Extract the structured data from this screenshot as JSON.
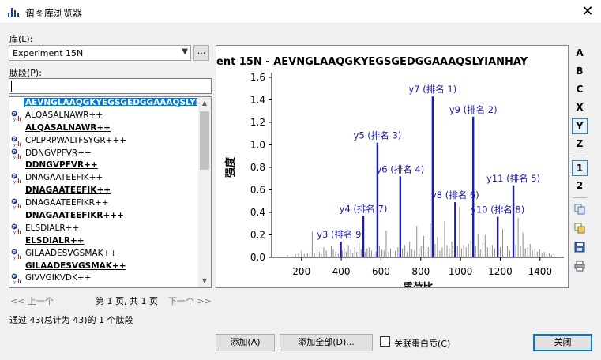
{
  "window": {
    "title": "谱图库浏览器",
    "close_glyph": "✕"
  },
  "library": {
    "label": "库(L):",
    "selected": "Experiment 15N",
    "browse_label": "..."
  },
  "peptide_filter": {
    "label": "肽段(P):",
    "value": ""
  },
  "peptides": [
    {
      "text": "AEVNGLAAQGKYEGSGEDGGAAAQSLYIANHAY",
      "bold": true,
      "icon": false,
      "selected": true
    },
    {
      "text": "ALQASALNAWR++",
      "bold": false,
      "icon": true
    },
    {
      "text": "ALQASALNAWR++",
      "bold": true,
      "icon": false
    },
    {
      "text": "CPLPRPWALTFSYGR+++",
      "bold": false,
      "icon": true
    },
    {
      "text": "DDNGVPFVR++",
      "bold": false,
      "icon": true
    },
    {
      "text": "DDNGVPFVR++",
      "bold": true,
      "icon": false
    },
    {
      "text": "DNAGAATEEFIK++",
      "bold": false,
      "icon": true
    },
    {
      "text": "DNAGAATEEFIK++",
      "bold": true,
      "icon": false
    },
    {
      "text": "DNAGAATEEFIKR++",
      "bold": false,
      "icon": true
    },
    {
      "text": "DNAGAATEEFIKR+++",
      "bold": true,
      "icon": false
    },
    {
      "text": "ELSDIALR++",
      "bold": false,
      "icon": true
    },
    {
      "text": "ELSDIALR++",
      "bold": true,
      "icon": false
    },
    {
      "text": "GILAADESVGSMAK++",
      "bold": false,
      "icon": true
    },
    {
      "text": "GILAADESVGSMAK++",
      "bold": true,
      "icon": false
    },
    {
      "text": "GIVVGIKVDK++",
      "bold": false,
      "icon": true
    }
  ],
  "pager": {
    "prev": "<< 上一个",
    "page_info": "第 1 页, 共 1 页",
    "next": "下一个 >>"
  },
  "status": "通过 43(总计为 43)的 1 个肽段",
  "toolbar": {
    "ion_types": [
      {
        "label": "A",
        "active": false
      },
      {
        "label": "B",
        "active": false
      },
      {
        "label": "C",
        "active": false
      },
      {
        "label": "X",
        "active": false
      },
      {
        "label": "Y",
        "active": true
      },
      {
        "label": "Z",
        "active": false
      }
    ],
    "charges": [
      {
        "label": "1",
        "active": true
      },
      {
        "label": "2",
        "active": false
      }
    ],
    "icons": [
      "copy-icon",
      "copy-data-icon",
      "save-icon",
      "print-icon"
    ]
  },
  "buttons": {
    "add": "添加(A)",
    "add_all": "添加全部(D)...",
    "close": "关闭"
  },
  "checkbox": {
    "label": "关联蛋白质(C)",
    "checked": false
  },
  "chart_data": {
    "type": "bar",
    "title": "ent 15N  -  AEVNGLAAQGKYEGSGEDGGAAAQSLYIANHAY",
    "xlabel": "质荷比",
    "ylabel": "强度",
    "xlim": [
      50,
      1520
    ],
    "ylim": [
      0,
      1.6
    ],
    "xticks": [
      200,
      400,
      600,
      800,
      1000,
      1200,
      1400
    ],
    "yticks": [
      0.0,
      0.2,
      0.4,
      0.6,
      0.8,
      1.0,
      1.2,
      1.4,
      1.6
    ],
    "matched_color": "#1a1ab3",
    "unmatched_color": "#8c8c8c",
    "matched_peaks": [
      {
        "x": 398,
        "y": 0.14,
        "label": "y3 (排名 9)"
      },
      {
        "x": 511,
        "y": 0.37,
        "label": "y4 (排名 7)"
      },
      {
        "x": 582,
        "y": 1.02,
        "label": "y5 (排名 3)"
      },
      {
        "x": 697,
        "y": 0.72,
        "label": "y6 (排名 4)"
      },
      {
        "x": 860,
        "y": 1.43,
        "label": "y7 (排名 1)"
      },
      {
        "x": 973,
        "y": 0.49,
        "label": "y8 (排名 6)"
      },
      {
        "x": 1064,
        "y": 1.25,
        "label": "y9 (排名 2)"
      },
      {
        "x": 1187,
        "y": 0.36,
        "label": "y10 (排名 8)"
      },
      {
        "x": 1266,
        "y": 0.64,
        "label": "y11 (排名 5)"
      }
    ],
    "unmatched_peaks": [
      [
        130,
        0.02
      ],
      [
        148,
        0.01
      ],
      [
        170,
        0.03
      ],
      [
        185,
        0.04
      ],
      [
        200,
        0.06
      ],
      [
        214,
        0.03
      ],
      [
        230,
        0.04
      ],
      [
        242,
        0.05
      ],
      [
        254,
        0.23
      ],
      [
        265,
        0.04
      ],
      [
        278,
        0.07
      ],
      [
        290,
        0.05
      ],
      [
        300,
        0.03
      ],
      [
        312,
        0.09
      ],
      [
        325,
        0.06
      ],
      [
        338,
        0.04
      ],
      [
        350,
        0.1
      ],
      [
        360,
        0.07
      ],
      [
        372,
        0.05
      ],
      [
        385,
        0.03
      ],
      [
        405,
        0.06
      ],
      [
        415,
        0.08
      ],
      [
        425,
        0.05
      ],
      [
        436,
        0.11
      ],
      [
        448,
        0.07
      ],
      [
        458,
        0.04
      ],
      [
        468,
        0.09
      ],
      [
        478,
        0.05
      ],
      [
        490,
        0.13
      ],
      [
        500,
        0.07
      ],
      [
        520,
        0.05
      ],
      [
        530,
        0.08
      ],
      [
        540,
        0.09
      ],
      [
        552,
        0.06
      ],
      [
        565,
        0.08
      ],
      [
        575,
        0.05
      ],
      [
        592,
        0.1
      ],
      [
        605,
        0.07
      ],
      [
        615,
        0.06
      ],
      [
        626,
        0.24
      ],
      [
        638,
        0.05
      ],
      [
        648,
        0.08
      ],
      [
        660,
        0.1
      ],
      [
        672,
        0.06
      ],
      [
        685,
        0.09
      ],
      [
        708,
        0.08
      ],
      [
        720,
        0.11
      ],
      [
        732,
        0.05
      ],
      [
        744,
        0.14
      ],
      [
        756,
        0.07
      ],
      [
        768,
        0.06
      ],
      [
        780,
        0.28
      ],
      [
        792,
        0.08
      ],
      [
        802,
        0.1
      ],
      [
        815,
        0.19
      ],
      [
        826,
        0.07
      ],
      [
        838,
        0.09
      ],
      [
        848,
        0.3
      ],
      [
        872,
        0.12
      ],
      [
        884,
        0.18
      ],
      [
        896,
        0.06
      ],
      [
        908,
        0.09
      ],
      [
        920,
        0.32
      ],
      [
        932,
        0.11
      ],
      [
        944,
        0.08
      ],
      [
        956,
        0.14
      ],
      [
        962,
        0.06
      ],
      [
        985,
        0.1
      ],
      [
        995,
        0.45
      ],
      [
        1005,
        0.08
      ],
      [
        1016,
        0.11
      ],
      [
        1028,
        0.09
      ],
      [
        1040,
        0.12
      ],
      [
        1052,
        0.15
      ],
      [
        1076,
        0.1
      ],
      [
        1088,
        0.21
      ],
      [
        1100,
        0.07
      ],
      [
        1112,
        0.13
      ],
      [
        1124,
        0.2
      ],
      [
        1136,
        0.09
      ],
      [
        1148,
        0.06
      ],
      [
        1160,
        0.11
      ],
      [
        1172,
        0.08
      ],
      [
        1200,
        0.09
      ],
      [
        1212,
        0.25
      ],
      [
        1224,
        0.07
      ],
      [
        1236,
        0.1
      ],
      [
        1248,
        0.06
      ],
      [
        1278,
        0.11
      ],
      [
        1290,
        0.35
      ],
      [
        1302,
        0.1
      ],
      [
        1314,
        0.22
      ],
      [
        1326,
        0.08
      ],
      [
        1338,
        0.09
      ],
      [
        1350,
        0.12
      ],
      [
        1362,
        0.06
      ],
      [
        1374,
        0.08
      ],
      [
        1386,
        0.05
      ],
      [
        1398,
        0.07
      ],
      [
        1410,
        0.04
      ],
      [
        1422,
        0.05
      ],
      [
        1434,
        0.03
      ],
      [
        1446,
        0.04
      ],
      [
        1458,
        0.02
      ],
      [
        1470,
        0.03
      ]
    ]
  }
}
